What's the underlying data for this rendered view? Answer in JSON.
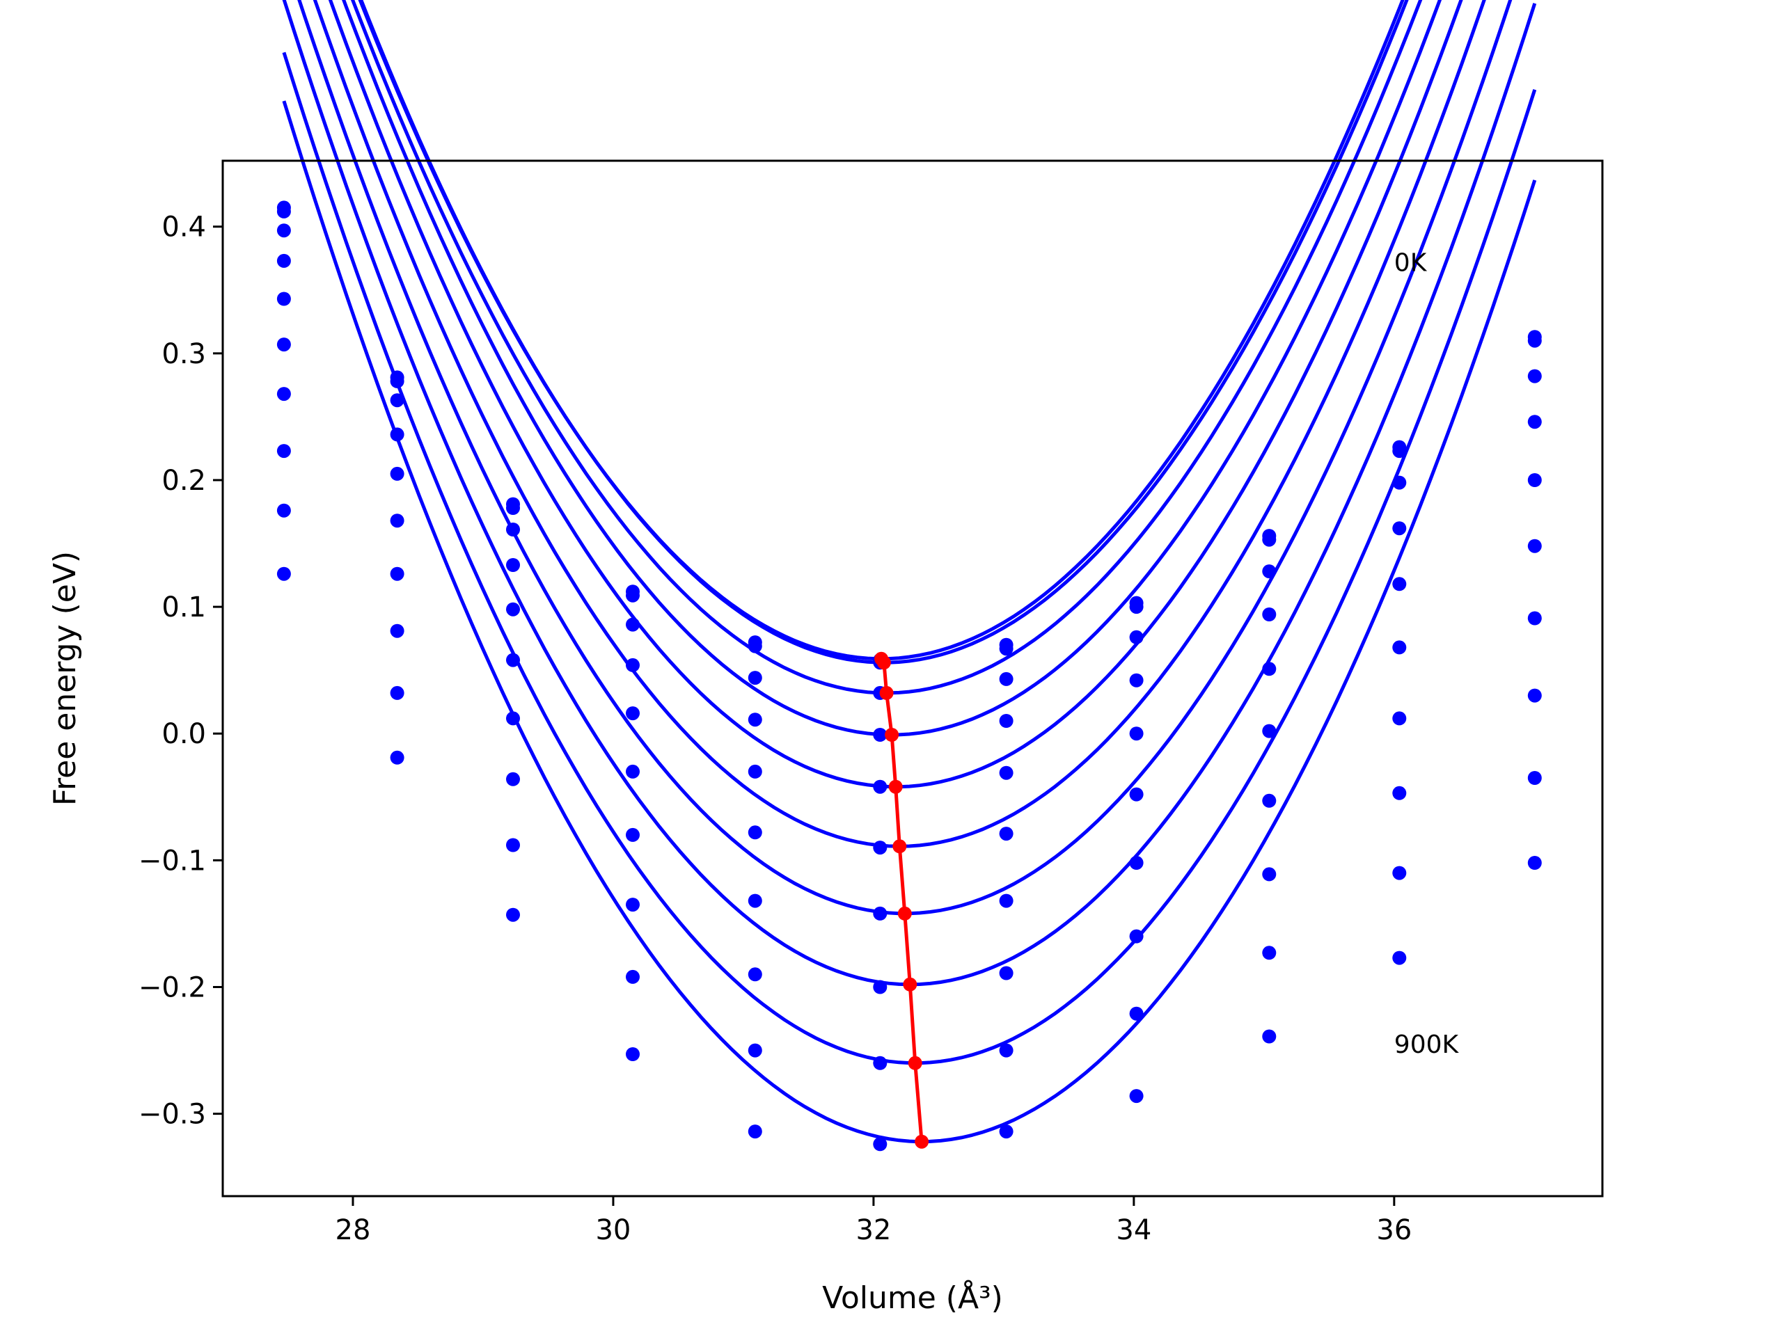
{
  "chart_data": {
    "type": "line",
    "title": "",
    "xlabel": "Volume (Å³)",
    "ylabel": "Free energy (eV)",
    "xlim": [
      27.0,
      37.6
    ],
    "ylim": [
      -0.365,
      0.452
    ],
    "xticks": [
      28,
      30,
      32,
      34,
      36
    ],
    "xtick_labels": [
      "28",
      "30",
      "32",
      "34",
      "36"
    ],
    "yticks": [
      0.4,
      0.3,
      0.2,
      0.1,
      0.0,
      -0.1,
      -0.2,
      -0.3
    ],
    "ytick_labels": [
      "0.4",
      "0.3",
      "0.2",
      "0.1",
      "0.0",
      "−0.1",
      "−0.2",
      "−0.3"
    ],
    "grid": false,
    "annotations": [
      {
        "text": "0K",
        "x": 36.0,
        "y": 0.365
      },
      {
        "text": "900K",
        "x": 36.0,
        "y": -0.252
      }
    ],
    "series_color": "#0000ff",
    "minima_color": "#ff0000",
    "volumes": [
      27.47,
      28.34,
      29.23,
      30.15,
      31.09,
      32.05,
      33.02,
      34.02,
      35.04,
      36.04,
      37.08
    ],
    "series": [
      {
        "points": [
          0.415,
          0.281,
          0.181,
          0.112,
          0.072,
          0.058,
          0.07,
          0.103,
          0.156,
          0.226,
          0.313
        ],
        "fit": {
          "a": 0.0324,
          "v0": 32.06,
          "e0": 0.059
        }
      },
      {
        "points": [
          0.412,
          0.278,
          0.178,
          0.109,
          0.069,
          0.056,
          0.067,
          0.1,
          0.153,
          0.223,
          0.31
        ],
        "fit": {
          "a": 0.0324,
          "v0": 32.08,
          "e0": 0.056
        }
      },
      {
        "points": [
          0.397,
          0.263,
          0.161,
          0.086,
          0.044,
          0.032,
          0.043,
          0.076,
          0.128,
          0.198,
          0.282
        ],
        "fit": {
          "a": 0.0325,
          "v0": 32.1,
          "e0": 0.032
        }
      },
      {
        "points": [
          0.373,
          0.236,
          0.133,
          0.054,
          0.011,
          -0.001,
          0.01,
          0.042,
          0.094,
          0.162,
          0.246
        ],
        "fit": {
          "a": 0.0327,
          "v0": 32.14,
          "e0": -0.001
        }
      },
      {
        "points": [
          0.343,
          0.205,
          0.098,
          0.016,
          -0.03,
          -0.042,
          -0.031,
          0.0,
          0.051,
          0.118,
          0.2
        ],
        "fit": {
          "a": 0.0329,
          "v0": 32.17,
          "e0": -0.042
        }
      },
      {
        "points": [
          0.307,
          0.168,
          0.058,
          -0.03,
          -0.078,
          -0.09,
          -0.079,
          -0.048,
          0.002,
          0.068,
          0.148
        ],
        "fit": {
          "a": 0.0331,
          "v0": 32.2,
          "e0": -0.089
        }
      },
      {
        "points": [
          0.268,
          0.126,
          0.012,
          -0.08,
          -0.132,
          -0.142,
          -0.132,
          -0.102,
          -0.053,
          0.012,
          0.091
        ],
        "fit": {
          "a": 0.0333,
          "v0": 32.24,
          "e0": -0.142
        }
      },
      {
        "points": [
          0.223,
          0.081,
          -0.036,
          -0.135,
          -0.19,
          -0.2,
          -0.189,
          -0.16,
          -0.111,
          -0.047,
          0.03
        ],
        "fit": {
          "a": 0.0336,
          "v0": 32.28,
          "e0": -0.198
        }
      },
      {
        "points": [
          0.176,
          0.032,
          -0.088,
          -0.192,
          -0.25,
          -0.26,
          -0.25,
          -0.221,
          -0.173,
          -0.11,
          -0.035
        ],
        "fit": {
          "a": 0.0339,
          "v0": 32.32,
          "e0": -0.26
        }
      },
      {
        "points": [
          0.126,
          -0.019,
          -0.143,
          -0.253,
          -0.314,
          -0.324,
          -0.314,
          -0.286,
          -0.239,
          -0.177,
          -0.102
        ],
        "fit": {
          "a": 0.0342,
          "v0": 32.37,
          "e0": -0.322
        }
      }
    ],
    "minima": [
      {
        "x": 32.06,
        "y": 0.059
      },
      {
        "x": 32.08,
        "y": 0.056
      },
      {
        "x": 32.1,
        "y": 0.032
      },
      {
        "x": 32.14,
        "y": -0.001
      },
      {
        "x": 32.17,
        "y": -0.042
      },
      {
        "x": 32.2,
        "y": -0.089
      },
      {
        "x": 32.24,
        "y": -0.142
      },
      {
        "x": 32.28,
        "y": -0.198
      },
      {
        "x": 32.32,
        "y": -0.26
      },
      {
        "x": 32.37,
        "y": -0.322
      }
    ]
  }
}
